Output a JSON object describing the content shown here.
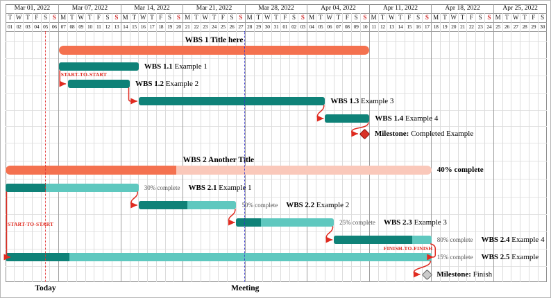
{
  "calendar": {
    "weeks": [
      {
        "label": "Mar 01, 2022",
        "days": 6
      },
      {
        "label": "Mar 07, 2022",
        "days": 7
      },
      {
        "label": "Mar 14, 2022",
        "days": 7
      },
      {
        "label": "Mar 21, 2022",
        "days": 7
      },
      {
        "label": "Mar 28, 2022",
        "days": 7
      },
      {
        "label": "Apr 04, 2022",
        "days": 7
      },
      {
        "label": "Apr 11, 2022",
        "days": 7
      },
      {
        "label": "Apr 18, 2022",
        "days": 7
      },
      {
        "label": "Apr 25, 2022",
        "days": 6
      }
    ],
    "day_letters": [
      "T",
      "W",
      "T",
      "F",
      "S",
      "S",
      "M",
      "T",
      "W",
      "T",
      "F",
      "S",
      "S",
      "M",
      "T",
      "W",
      "T",
      "F",
      "S",
      "S",
      "M",
      "T",
      "W",
      "T",
      "F",
      "S",
      "S",
      "M",
      "T",
      "W",
      "T",
      "F",
      "S",
      "S",
      "M",
      "T",
      "W",
      "T",
      "F",
      "S",
      "S",
      "M",
      "T",
      "W",
      "T",
      "F",
      "S",
      "S",
      "M",
      "T",
      "W",
      "T",
      "F",
      "S",
      "S",
      "M",
      "T",
      "W",
      "T",
      "F",
      "S"
    ],
    "day_numbers": [
      "01",
      "02",
      "03",
      "04",
      "05",
      "06",
      "07",
      "08",
      "09",
      "10",
      "11",
      "12",
      "13",
      "14",
      "15",
      "16",
      "17",
      "18",
      "19",
      "20",
      "21",
      "22",
      "23",
      "24",
      "25",
      "26",
      "27",
      "28",
      "29",
      "30",
      "31",
      "01",
      "02",
      "03",
      "04",
      "05",
      "06",
      "07",
      "08",
      "09",
      "10",
      "11",
      "12",
      "13",
      "14",
      "15",
      "16",
      "17",
      "18",
      "19",
      "20",
      "21",
      "22",
      "23",
      "24",
      "25",
      "26",
      "27",
      "28",
      "29",
      "30"
    ],
    "sunday_indices": [
      5,
      12,
      19,
      26,
      33,
      40,
      47,
      54
    ]
  },
  "chart_data": {
    "type": "gantt",
    "timeline": {
      "start_date": "Mar 01, 2022",
      "end_date": "Apr 30, 2022",
      "total_days": 61
    },
    "groups": [
      {
        "title": "WBS 1 Title here",
        "row": 0,
        "start": 6,
        "end": 41,
        "progress": null,
        "progress_label": "",
        "tasks": [
          {
            "name": "WBS 1.1",
            "desc": "Example 1",
            "row": 1,
            "start": 6,
            "end": 15,
            "progress": 100,
            "progress_label": ""
          },
          {
            "name": "WBS 1.2",
            "desc": "Example 2",
            "row": 2,
            "start": 7,
            "end": 14,
            "progress": 100,
            "progress_label": ""
          },
          {
            "name": "WBS 1.3",
            "desc": "Example 3",
            "row": 3,
            "start": 15,
            "end": 36,
            "progress": 100,
            "progress_label": ""
          },
          {
            "name": "WBS 1.4",
            "desc": "Example 4",
            "row": 4,
            "start": 36,
            "end": 41,
            "progress": 100,
            "progress_label": ""
          }
        ],
        "milestone": {
          "id": "milestone-1",
          "label_bold": "Milestone:",
          "label_text": "Completed Example",
          "row": 5,
          "day": 40,
          "style": "red"
        }
      },
      {
        "title": "WBS 2 Another Title",
        "row": 7,
        "start": 0,
        "end": 48,
        "progress": 40,
        "progress_label": "40% complete",
        "tasks": [
          {
            "name": "WBS 2.1",
            "desc": "Example 1",
            "row": 8,
            "start": 0,
            "end": 15,
            "progress": 30,
            "progress_label": "30% complete"
          },
          {
            "name": "WBS 2.2",
            "desc": "Example 2",
            "row": 9,
            "start": 15,
            "end": 26,
            "progress": 50,
            "progress_label": "50% complete"
          },
          {
            "name": "WBS 2.3",
            "desc": "Example 3",
            "row": 10,
            "start": 26,
            "end": 37,
            "progress": 25,
            "progress_label": "25% complete"
          },
          {
            "name": "WBS 2.4",
            "desc": "Example 4",
            "row": 11,
            "start": 37,
            "end": 48,
            "progress": 80,
            "progress_label": "80% complete"
          },
          {
            "name": "WBS 2.5",
            "desc": "Example",
            "row": 12,
            "start": 0,
            "end": 48,
            "progress": 15,
            "progress_label": "15% complete"
          }
        ],
        "milestone": {
          "id": "milestone-2",
          "label_bold": "Milestone:",
          "label_text": "Finish",
          "row": 13,
          "day": 47,
          "style": "gray"
        }
      }
    ],
    "links": [
      {
        "type": "start-to-start",
        "from": "WBS 1.1",
        "to": "WBS 1.2",
        "label": "START-TO-START"
      },
      {
        "type": "finish-to-start",
        "from": "WBS 1.2",
        "to": "WBS 1.3",
        "label": ""
      },
      {
        "type": "finish-to-start",
        "from": "WBS 1.3",
        "to": "WBS 1.4",
        "label": ""
      },
      {
        "type": "finish-to-start",
        "from": "WBS 1.4",
        "to": "milestone-1",
        "label": ""
      },
      {
        "type": "start-to-start",
        "from": "WBS 2.1",
        "to": "WBS 2.5",
        "label": "START-TO-START"
      },
      {
        "type": "finish-to-start",
        "from": "WBS 2.1",
        "to": "WBS 2.2",
        "label": ""
      },
      {
        "type": "finish-to-start",
        "from": "WBS 2.2",
        "to": "WBS 2.3",
        "label": ""
      },
      {
        "type": "finish-to-start",
        "from": "WBS 2.3",
        "to": "WBS 2.4",
        "label": ""
      },
      {
        "type": "finish-to-finish",
        "from": "WBS 2.4",
        "to": "WBS 2.5",
        "label": "FINISH-TO-FINISH"
      },
      {
        "type": "finish-to-start",
        "from": "WBS 2.5",
        "to": "milestone-2",
        "label": ""
      }
    ],
    "markers": [
      {
        "label": "Today",
        "day": 4.5,
        "color": "#E03131"
      },
      {
        "label": "Meeting",
        "day": 27,
        "color": "#3434CE"
      }
    ],
    "colors": {
      "group_bar": "#F4714F",
      "group_bar_light": "#FAC8BA",
      "task_bar": "#0F8278",
      "task_bar_light": "#5FC8BF",
      "link": "#E02B20",
      "sunday": "#D02B2B",
      "milestone_red": "#D93025",
      "milestone_red_border": "#8E1410",
      "milestone_gray": "#CBCBCB",
      "milestone_gray_border": "#5E5E5E"
    }
  }
}
